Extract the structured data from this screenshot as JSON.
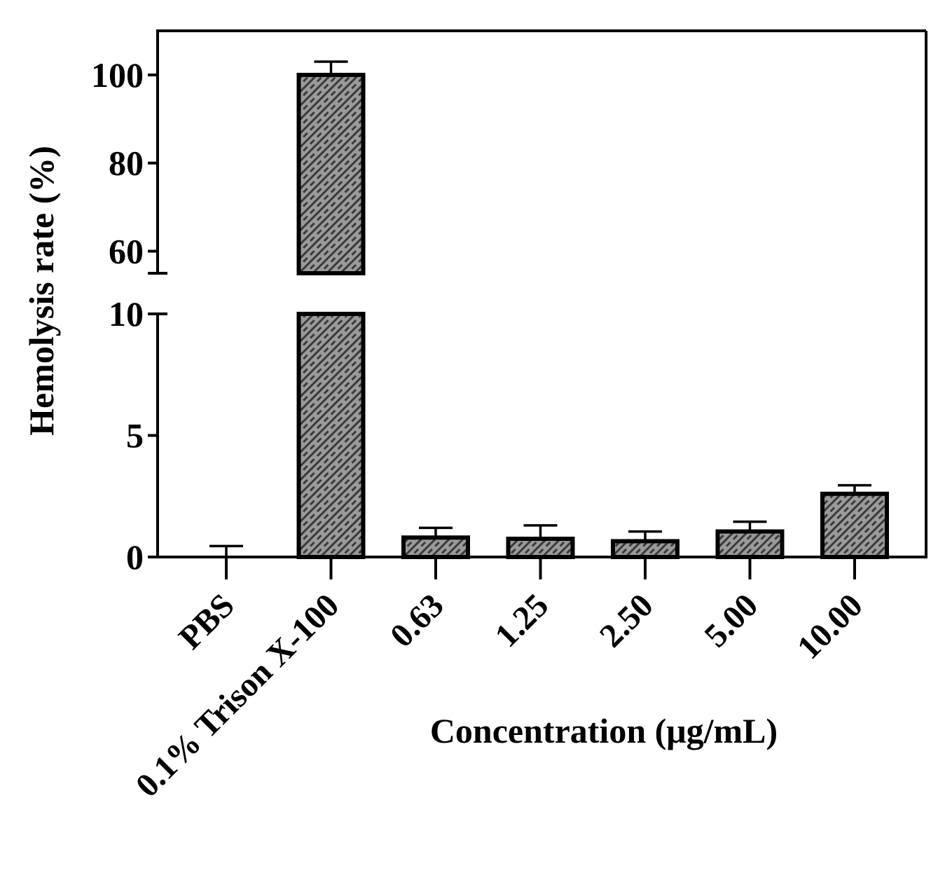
{
  "chart_data": {
    "type": "bar",
    "xlabel": "Concentration (μg/mL)",
    "ylabel": "Hemolysis rate (%)",
    "categories": [
      "PBS",
      "0.1% Trison X-100",
      "0.63",
      "1.25",
      "2.50",
      "5.00",
      "10.00"
    ],
    "values": [
      0,
      100,
      0.8,
      0.75,
      0.65,
      1.05,
      2.6
    ],
    "error": [
      0.45,
      3,
      0.4,
      0.55,
      0.4,
      0.4,
      0.35
    ],
    "y_axis_break": {
      "lower_range": [
        0,
        10
      ],
      "upper_range": [
        55,
        110
      ],
      "lower_ticks": [
        "0",
        "5",
        "10"
      ],
      "upper_ticks": [
        "60",
        "80",
        "100"
      ]
    },
    "bar_fill": "hatched-dark-gray",
    "grid": false,
    "legend": "none"
  }
}
